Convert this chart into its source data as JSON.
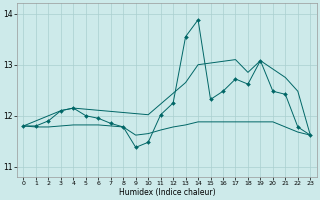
{
  "title": "",
  "xlabel": "Humidex (Indice chaleur)",
  "xlim": [
    -0.5,
    23.5
  ],
  "ylim": [
    10.8,
    14.2
  ],
  "yticks": [
    11,
    12,
    13,
    14
  ],
  "xticks": [
    0,
    1,
    2,
    3,
    4,
    5,
    6,
    7,
    8,
    9,
    10,
    11,
    12,
    13,
    14,
    15,
    16,
    17,
    18,
    19,
    20,
    21,
    22,
    23
  ],
  "background_color": "#cdeaea",
  "grid_color": "#aacfcf",
  "line_color": "#006666",
  "series": [
    {
      "x": [
        0,
        1,
        2,
        3,
        4,
        5,
        6,
        7,
        8,
        9,
        10,
        11,
        12,
        13,
        14,
        15,
        16,
        17,
        18,
        19,
        20,
        21,
        22,
        23
      ],
      "y": [
        11.8,
        11.8,
        11.9,
        12.1,
        12.15,
        12.0,
        11.95,
        11.85,
        11.78,
        11.38,
        11.48,
        12.02,
        12.25,
        13.55,
        13.88,
        12.32,
        12.48,
        12.72,
        12.62,
        13.08,
        12.48,
        12.42,
        11.78,
        11.62
      ]
    },
    {
      "x": [
        0,
        1,
        2,
        3,
        4,
        5,
        6,
        7,
        8,
        9,
        10,
        11,
        12,
        13,
        14,
        15,
        16,
        17,
        18,
        19,
        20,
        21,
        22,
        23
      ],
      "y": [
        11.8,
        11.78,
        11.78,
        11.8,
        11.82,
        11.82,
        11.82,
        11.8,
        11.78,
        11.62,
        11.65,
        11.72,
        11.78,
        11.82,
        11.88,
        11.88,
        11.88,
        11.88,
        11.88,
        11.88,
        11.88,
        11.78,
        11.68,
        11.62
      ]
    },
    {
      "x": [
        0,
        3,
        4,
        10,
        13,
        14,
        17,
        18,
        19,
        21,
        22,
        23
      ],
      "y": [
        11.8,
        12.1,
        12.15,
        12.02,
        12.65,
        13.0,
        13.1,
        12.85,
        13.08,
        12.75,
        12.48,
        11.62
      ]
    }
  ]
}
